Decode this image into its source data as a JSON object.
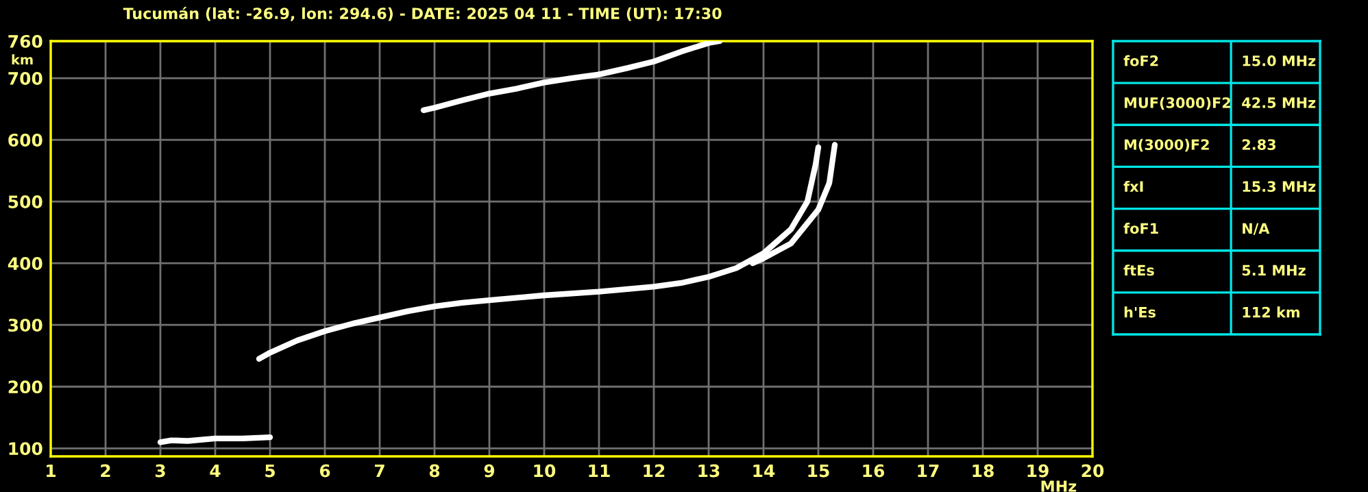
{
  "chart_data": [
    {
      "type": "line",
      "title": "Tucumán (lat: -26.9, lon: 294.6) - DATE: 2025 04 11 - TIME (UT): 17:30",
      "xlabel": "MHz",
      "ylabel": "km",
      "series": [
        {
          "color": "#ffffff",
          "x": [
            3.0,
            3.2,
            3.5,
            4.0,
            4.5,
            5.0
          ],
          "values": [
            110,
            113,
            112,
            116,
            116,
            118
          ]
        },
        {
          "color": "#ffffff",
          "x": [
            4.8,
            5.0,
            5.5,
            6.0,
            6.5,
            7.0,
            7.5,
            8.0,
            8.5,
            9.0,
            10.0,
            11.0,
            12.0,
            12.5,
            13.0,
            13.5,
            14.0,
            14.5,
            14.8,
            14.95,
            15.0
          ],
          "values": [
            245,
            255,
            275,
            290,
            302,
            312,
            322,
            330,
            336,
            340,
            348,
            354,
            362,
            368,
            378,
            392,
            416,
            455,
            500,
            560,
            588
          ]
        },
        {
          "color": "#ffffff",
          "x": [
            13.8,
            14.0,
            14.5,
            15.0,
            15.2,
            15.3
          ],
          "values": [
            400,
            408,
            432,
            487,
            530,
            592
          ]
        },
        {
          "color": "#ffffff",
          "x": [
            7.8,
            8.0,
            8.5,
            9.0,
            9.5,
            10.0,
            10.5,
            11.0,
            11.5,
            12.0,
            12.5,
            13.0,
            13.2
          ],
          "values": [
            648,
            652,
            664,
            675,
            683,
            693,
            700,
            706,
            716,
            727,
            743,
            757,
            760
          ]
        }
      ],
      "xlim": [
        1,
        20
      ],
      "ylim": [
        87,
        760
      ],
      "xticks": [
        1,
        2,
        3,
        4,
        5,
        6,
        7,
        8,
        9,
        10,
        11,
        12,
        13,
        14,
        15,
        16,
        17,
        18,
        19,
        20
      ],
      "yticks": [
        100,
        200,
        300,
        400,
        500,
        600,
        700,
        760
      ],
      "grid": true,
      "line_style": "solid",
      "marker": "none"
    },
    {
      "type": "other",
      "annotations": [
        "foF2",
        "15.0 MHz",
        "MUF(3000)F2",
        "42.5 MHz",
        "M(3000)F2",
        "2.83",
        "fxI",
        "15.3 MHz",
        "foF1",
        "N/A",
        "ftEs",
        "5.1 MHz",
        "h'Es",
        "112 km"
      ]
    }
  ]
}
